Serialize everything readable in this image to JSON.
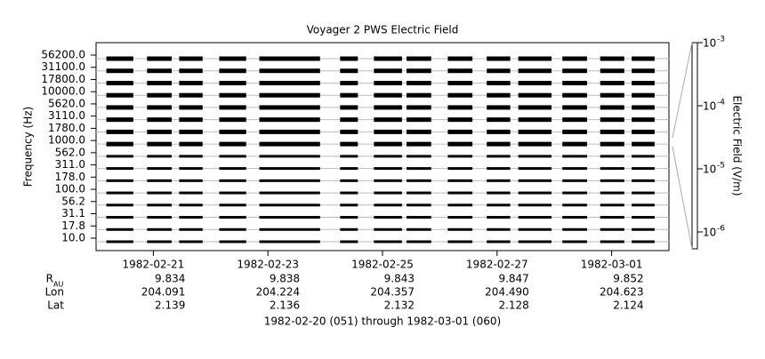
{
  "chart_data": {
    "type": "spectrum",
    "title": "Voyager 2 PWS Electric Field",
    "ylabel": "Frequency (Hz)",
    "channels": [
      "56200.0",
      "31100.0",
      "17800.0",
      "10000.0",
      "5620.0",
      "3110.0",
      "1780.0",
      "1000.0",
      "562.0",
      "311.0",
      "178.0",
      "100.0",
      "56.2",
      "31.1",
      "17.8",
      "10.0"
    ],
    "xlim": [
      51,
      61
    ],
    "xticks": [
      {
        "value": 52,
        "label": "1982-02-21"
      },
      {
        "value": 54,
        "label": "1982-02-23"
      },
      {
        "value": 56,
        "label": "1982-02-25"
      },
      {
        "value": 58,
        "label": "1982-02-27"
      },
      {
        "value": 60,
        "label": "1982-03-01"
      }
    ],
    "segments": [
      [
        51.18,
        51.65
      ],
      [
        51.89,
        52.32
      ],
      [
        52.45,
        52.86
      ],
      [
        53.15,
        53.62
      ],
      [
        53.85,
        54.91
      ],
      [
        55.26,
        55.57
      ],
      [
        55.85,
        56.34
      ],
      [
        56.42,
        56.85
      ],
      [
        57.14,
        57.57
      ],
      [
        57.82,
        58.23
      ],
      [
        58.37,
        58.95
      ],
      [
        59.14,
        59.57
      ],
      [
        59.8,
        60.22
      ],
      [
        60.35,
        60.75
      ]
    ],
    "color": "#000000",
    "colorbar": {
      "label": "Electric Field (V/m)",
      "scale": "log",
      "lim": [
        5.4e-07,
        0.001
      ],
      "ticks": [
        {
          "value": 0.001,
          "label": "10",
          "exponent": "-3"
        },
        {
          "value": 0.0001,
          "label": "10",
          "exponent": "-4"
        },
        {
          "value": 1e-05,
          "label": "10",
          "exponent": "-5"
        },
        {
          "value": 1e-06,
          "label": "10",
          "exponent": "-6"
        }
      ]
    },
    "ephemeris": [
      {
        "label": "R",
        "sub": "AU",
        "values": [
          "9.834",
          "9.838",
          "9.843",
          "9.847",
          "9.852"
        ]
      },
      {
        "label": "Lon",
        "values": [
          "204.091",
          "204.224",
          "204.357",
          "204.490",
          "204.623"
        ]
      },
      {
        "label": "Lat",
        "values": [
          "2.139",
          "2.136",
          "2.132",
          "2.128",
          "2.124"
        ]
      }
    ],
    "footer": "1982-02-20 (051) through 1982-03-01 (060)"
  }
}
